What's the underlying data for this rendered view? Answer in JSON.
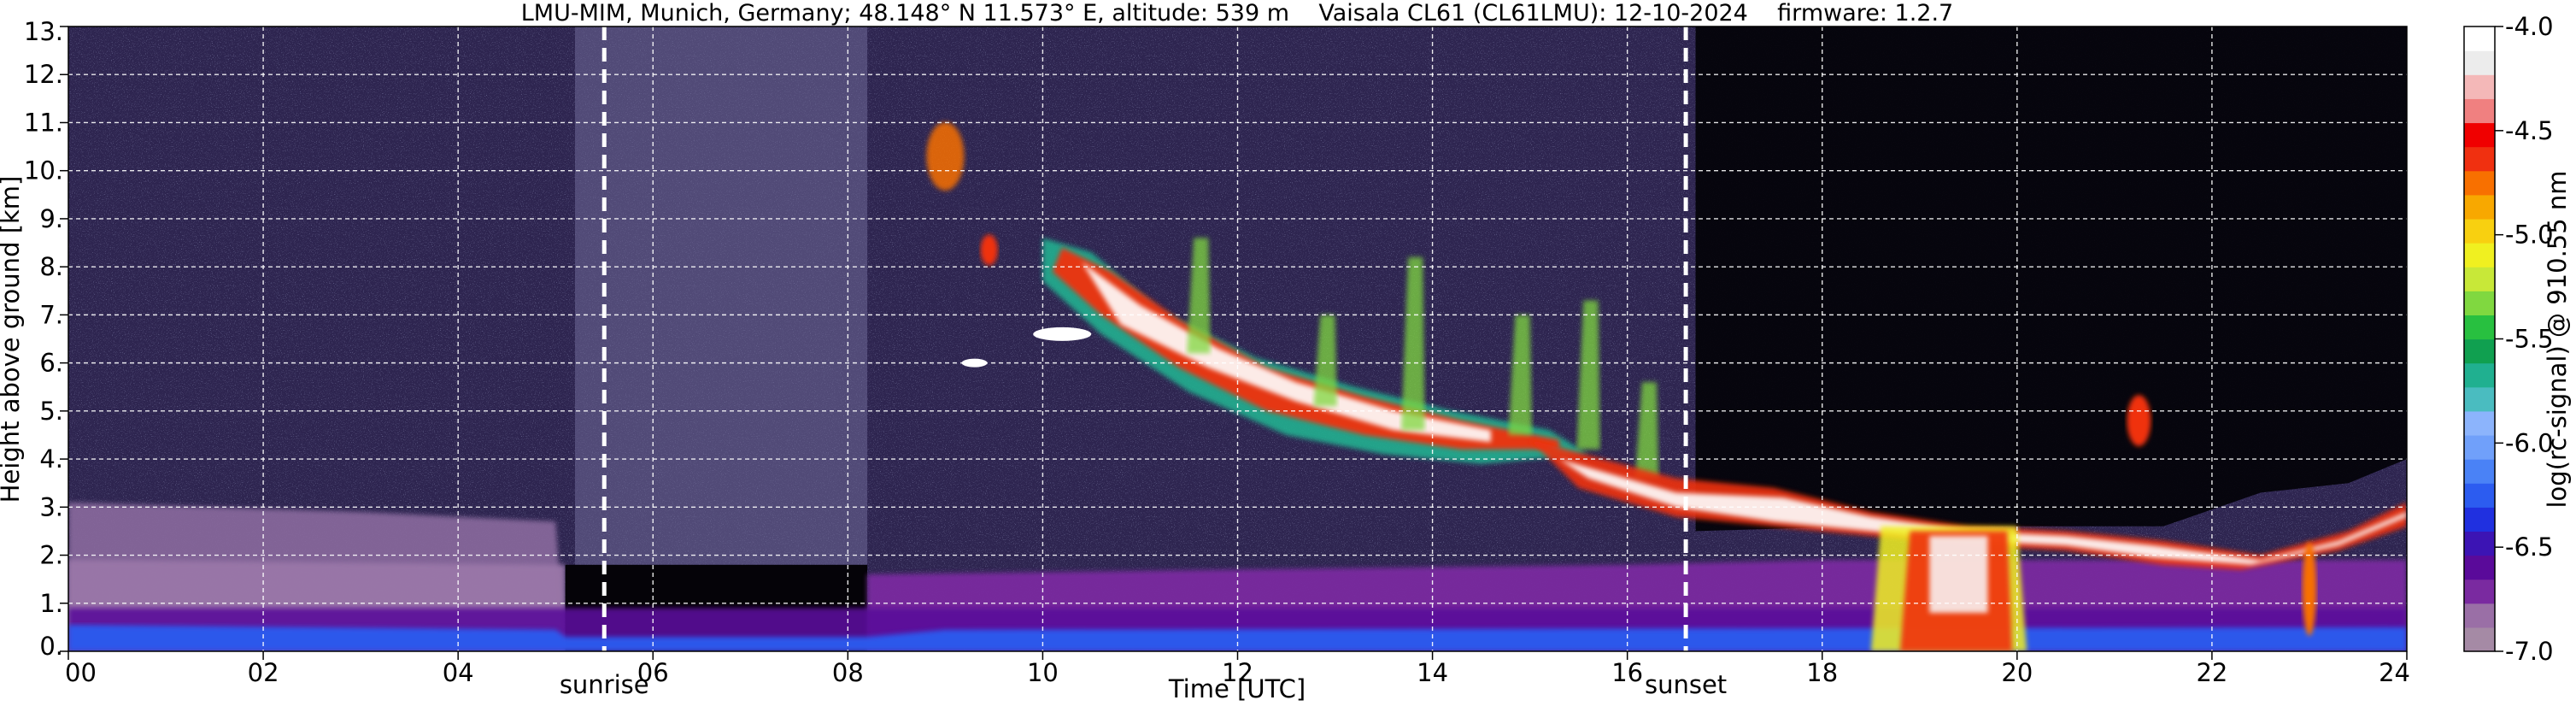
{
  "chart_data": {
    "type": "heatmap",
    "title": "LMU-MIM, Munich, Germany; 48.148° N 11.573° E, altitude: 539 m    Vaisala CL61 (CL61LMU): 12-10-2024    firmware: 1.2.7",
    "xlabel": "Time [UTC]",
    "ylabel": "Height above ground [km]",
    "xlim": [
      0,
      24
    ],
    "ylim": [
      0,
      13
    ],
    "x_ticks": [
      0,
      2,
      4,
      6,
      8,
      10,
      12,
      14,
      16,
      18,
      20,
      22,
      24
    ],
    "x_tick_labels": [
      "00",
      "02",
      "04",
      "06",
      "08",
      "10",
      "12",
      "14",
      "16",
      "18",
      "20",
      "22",
      "24"
    ],
    "y_ticks": [
      0,
      1,
      2,
      3,
      4,
      5,
      6,
      7,
      8,
      9,
      10,
      11,
      12,
      13
    ],
    "y_tick_labels": [
      "0.",
      "1.",
      "2.",
      "3.",
      "4.",
      "5.",
      "6.",
      "7.",
      "8.",
      "9.",
      "10.",
      "11.",
      "12.",
      "13."
    ],
    "grid": true,
    "markers": [
      {
        "label": "sunrise",
        "x": 5.5
      },
      {
        "label": "sunset",
        "x": 16.6
      }
    ],
    "colorbar": {
      "label": "log(rc-signal) @ 910.55 nm",
      "range": [
        -7.0,
        -4.0
      ],
      "ticks": [
        -7.0,
        -6.5,
        -6.0,
        -5.5,
        -5.0,
        -4.5,
        -4.0
      ],
      "tick_labels": [
        "-7.0",
        "-6.5",
        "-6.0",
        "-5.5",
        "-5.0",
        "-4.5",
        "-4.0"
      ],
      "colors": [
        "#a58aa5",
        "#9a6fa6",
        "#7a2aa0",
        "#5a0a9a",
        "#3c14b4",
        "#2030e0",
        "#2c5cf0",
        "#4a82f6",
        "#70a0fa",
        "#8cb4fc",
        "#4abcc0",
        "#20b090",
        "#10a050",
        "#28c040",
        "#80d840",
        "#c8e838",
        "#f0f020",
        "#f8d010",
        "#f8a800",
        "#f87000",
        "#f03010",
        "#f00000",
        "#f08080",
        "#f4b8b8",
        "#ececec",
        "#ffffff"
      ]
    },
    "features": [
      {
        "name": "boundary layer",
        "x": [
          0,
          24
        ],
        "height_km": [
          0,
          2.0
        ]
      },
      {
        "name": "cirrus descending",
        "x": [
          9.8,
          15.5
        ],
        "height_km": [
          8.5,
          4.0
        ]
      },
      {
        "name": "cloud layer",
        "x": [
          15,
          23.5
        ],
        "height_km": [
          2.0,
          4.0
        ]
      },
      {
        "name": "precipitation",
        "x": [
          18.5,
          20.1
        ],
        "height_km": [
          0,
          2.5
        ]
      }
    ]
  }
}
